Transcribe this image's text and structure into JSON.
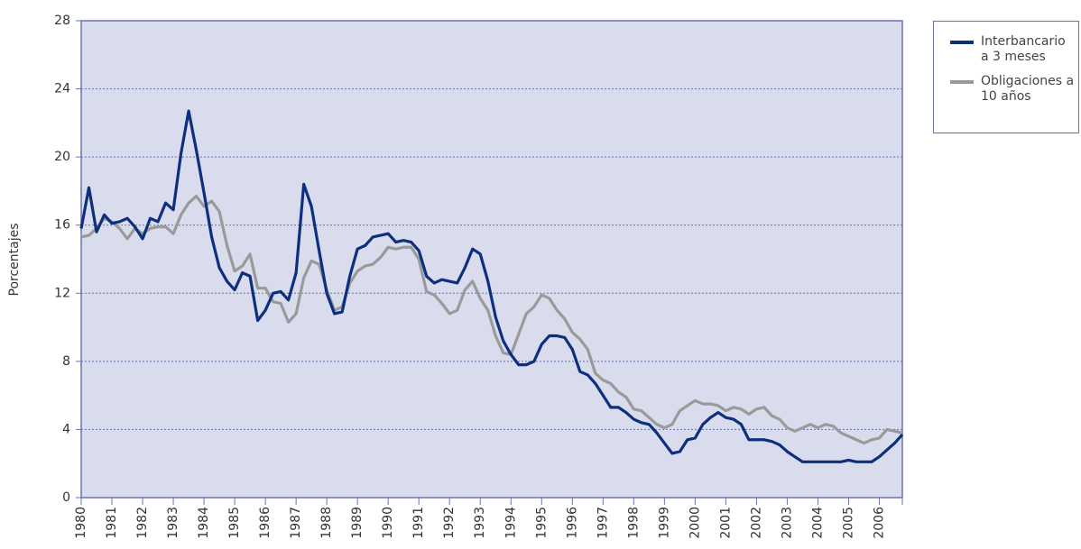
{
  "chart_data": {
    "type": "line",
    "y_label": "Porcentajes",
    "x": [
      1980,
      1980.25,
      1980.5,
      1980.75,
      1981,
      1981.25,
      1981.5,
      1981.75,
      1982,
      1982.25,
      1982.5,
      1982.75,
      1983,
      1983.25,
      1983.5,
      1983.75,
      1984,
      1984.25,
      1984.5,
      1984.75,
      1985,
      1985.25,
      1985.5,
      1985.75,
      1986,
      1986.25,
      1986.5,
      1986.75,
      1987,
      1987.25,
      1987.5,
      1987.75,
      1988,
      1988.25,
      1988.5,
      1988.75,
      1989,
      1989.25,
      1989.5,
      1989.75,
      1990,
      1990.25,
      1990.5,
      1990.75,
      1991,
      1991.25,
      1991.5,
      1991.75,
      1992,
      1992.25,
      1992.5,
      1992.75,
      1993,
      1993.25,
      1993.5,
      1993.75,
      1994,
      1994.25,
      1994.5,
      1994.75,
      1995,
      1995.25,
      1995.5,
      1995.75,
      1996,
      1996.25,
      1996.5,
      1996.75,
      1997,
      1997.25,
      1997.5,
      1997.75,
      1998,
      1998.25,
      1998.5,
      1998.75,
      1999,
      1999.25,
      1999.5,
      1999.75,
      2000,
      2000.25,
      2000.5,
      2000.75,
      2001,
      2001.25,
      2001.5,
      2001.75,
      2002,
      2002.25,
      2002.5,
      2002.75,
      2003,
      2003.25,
      2003.5,
      2003.75,
      2004,
      2004.25,
      2004.5,
      2004.75,
      2005,
      2005.25,
      2005.5,
      2005.75,
      2006,
      2006.25,
      2006.5,
      2006.75
    ],
    "series": [
      {
        "name": "Interbancario a 3 meses",
        "color": "#0d2f7e",
        "values": [
          15.8,
          18.2,
          15.6,
          16.6,
          16.1,
          16.2,
          16.4,
          15.9,
          15.2,
          16.4,
          16.2,
          17.3,
          16.9,
          20.2,
          22.7,
          20.4,
          17.9,
          15.3,
          13.5,
          12.7,
          12.2,
          13.2,
          13.0,
          10.4,
          11.0,
          12.0,
          12.1,
          11.6,
          13.2,
          18.4,
          17.1,
          14.5,
          12.0,
          10.8,
          10.9,
          13.0,
          14.6,
          14.8,
          15.3,
          15.4,
          15.5,
          15.0,
          15.1,
          15.0,
          14.5,
          13.0,
          12.6,
          12.8,
          12.7,
          12.6,
          13.5,
          14.6,
          14.3,
          12.7,
          10.6,
          9.2,
          8.4,
          7.8,
          7.8,
          8.0,
          9.0,
          9.5,
          9.5,
          9.4,
          8.7,
          7.4,
          7.2,
          6.7,
          6.0,
          5.3,
          5.3,
          5.0,
          4.6,
          4.4,
          4.3,
          3.8,
          3.2,
          2.6,
          2.7,
          3.4,
          3.5,
          4.3,
          4.7,
          5.0,
          4.7,
          4.6,
          4.3,
          3.4,
          3.4,
          3.4,
          3.3,
          3.1,
          2.7,
          2.4,
          2.1,
          2.1,
          2.1,
          2.1,
          2.1,
          2.1,
          2.2,
          2.1,
          2.1,
          2.1,
          2.4,
          2.8,
          3.2,
          3.7
        ]
      },
      {
        "name": "Obligaciones a 10 años",
        "color": "#9a9a9a",
        "values": [
          15.3,
          15.4,
          15.8,
          16.4,
          16.2,
          15.8,
          15.2,
          15.8,
          15.5,
          15.8,
          15.9,
          15.9,
          15.5,
          16.6,
          17.3,
          17.7,
          17.1,
          17.4,
          16.8,
          14.8,
          13.3,
          13.6,
          14.3,
          12.3,
          12.3,
          11.5,
          11.4,
          10.3,
          10.8,
          12.9,
          13.9,
          13.7,
          12.2,
          11.0,
          11.2,
          12.6,
          13.3,
          13.6,
          13.7,
          14.1,
          14.7,
          14.6,
          14.7,
          14.7,
          14.0,
          12.1,
          11.9,
          11.4,
          10.8,
          11.0,
          12.2,
          12.7,
          11.7,
          11.0,
          9.5,
          8.5,
          8.4,
          9.6,
          10.8,
          11.2,
          11.9,
          11.7,
          11.0,
          10.5,
          9.7,
          9.3,
          8.7,
          7.3,
          6.9,
          6.7,
          6.2,
          5.9,
          5.2,
          5.1,
          4.7,
          4.3,
          4.1,
          4.3,
          5.1,
          5.4,
          5.7,
          5.5,
          5.5,
          5.4,
          5.1,
          5.3,
          5.2,
          4.9,
          5.2,
          5.3,
          4.8,
          4.6,
          4.1,
          3.9,
          4.1,
          4.3,
          4.1,
          4.3,
          4.2,
          3.8,
          3.6,
          3.4,
          3.2,
          3.4,
          3.5,
          4.0,
          3.9,
          3.8
        ]
      }
    ],
    "xlim": [
      1980,
      2006.75
    ],
    "xticks": [
      1980,
      1981,
      1982,
      1983,
      1984,
      1985,
      1986,
      1987,
      1988,
      1989,
      1990,
      1991,
      1992,
      1993,
      1994,
      1995,
      1996,
      1997,
      1998,
      1999,
      2000,
      2001,
      2002,
      2003,
      2004,
      2005,
      2006
    ],
    "ylim": [
      0,
      28
    ],
    "yticks": [
      0,
      4,
      8,
      12,
      16,
      20,
      24,
      28
    ],
    "grid": true,
    "legend": "top-right"
  }
}
